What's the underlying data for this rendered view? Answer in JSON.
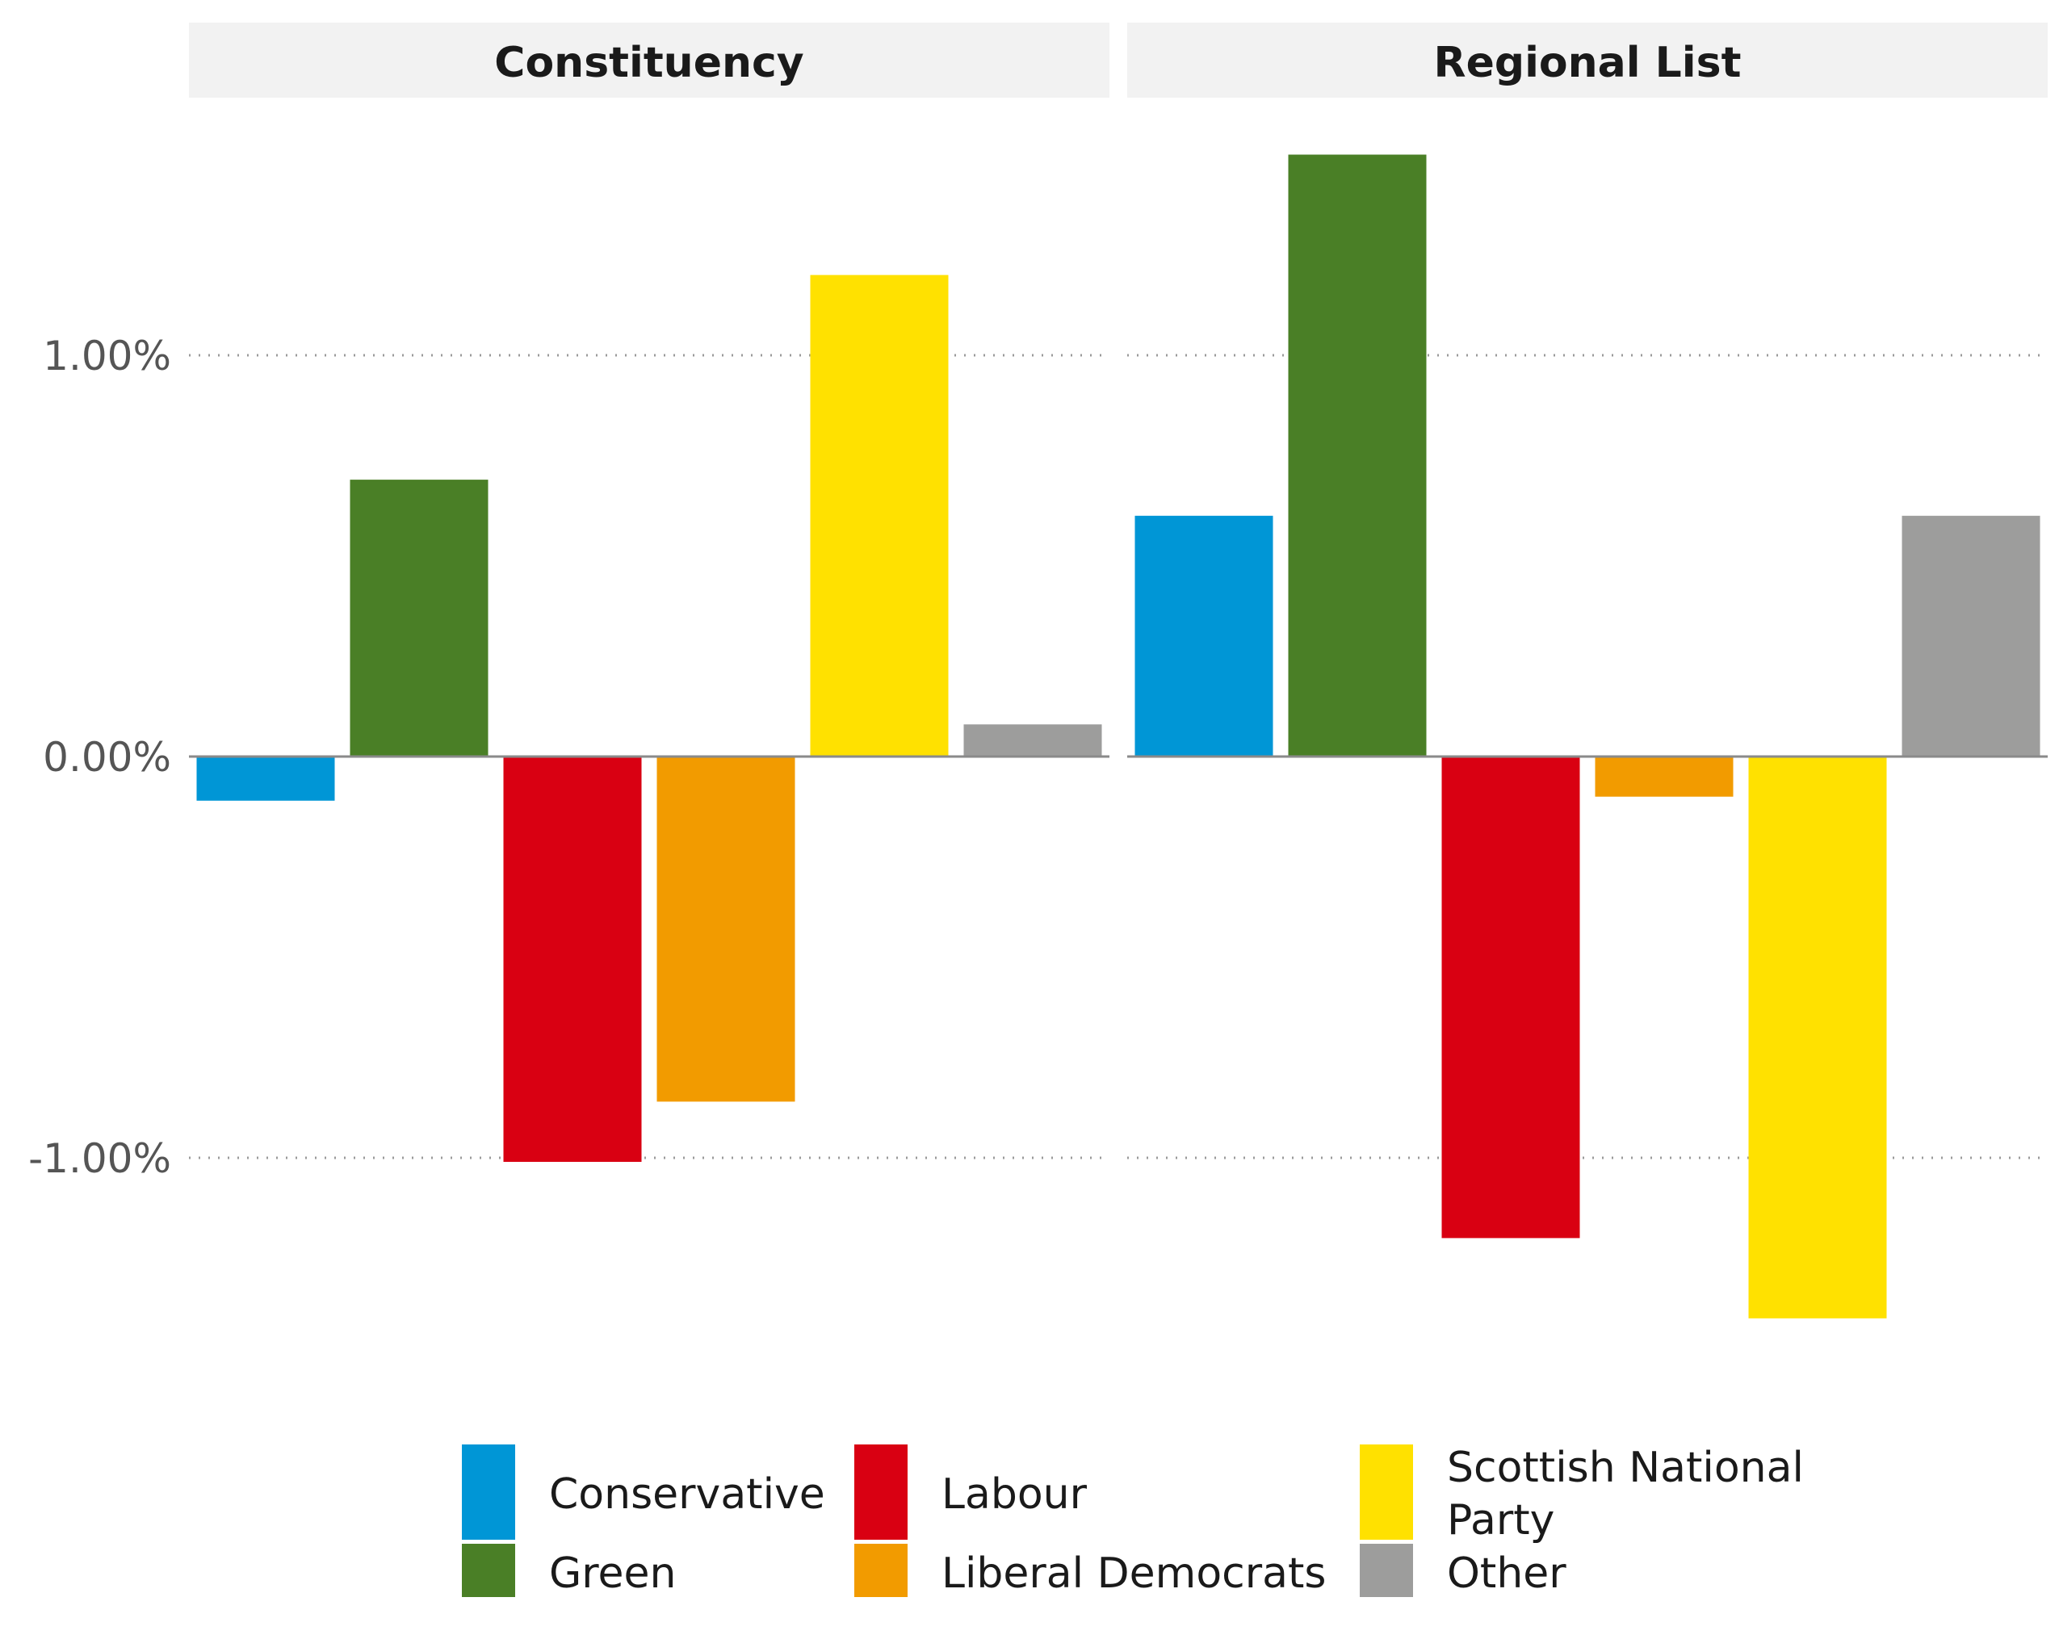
{
  "chart_data": {
    "type": "bar",
    "facets": [
      "Constituency",
      "Regional List"
    ],
    "categories": [
      "Conservative",
      "Green",
      "Labour",
      "Liberal Democrats",
      "Scottish National Party",
      "Other"
    ],
    "series": [
      {
        "name": "Constituency",
        "values": [
          -0.11,
          0.69,
          -1.01,
          -0.86,
          1.2,
          0.08
        ]
      },
      {
        "name": "Regional List",
        "values": [
          0.6,
          1.5,
          -1.2,
          -0.1,
          -1.4,
          0.6
        ]
      }
    ],
    "ylim": [
      -1.55,
      1.6
    ],
    "yticks": [
      1.0,
      0.0,
      -1.0
    ],
    "ytick_labels": [
      "1.00%",
      "0.00%",
      "-1.00%"
    ],
    "xlabel": "",
    "ylabel": "",
    "grid": "dotted horizontal",
    "legend_position": "bottom",
    "colors": {
      "Conservative": "#0096d6",
      "Green": "#4a7f26",
      "Labour": "#d90012",
      "Liberal Democrats": "#f29b00",
      "Scottish National Party": "#ffe100",
      "Other": "#9d9d9c"
    }
  },
  "legend": {
    "items": [
      {
        "label": "Conservative"
      },
      {
        "label": "Green"
      },
      {
        "label": "Labour"
      },
      {
        "label": "Liberal Democrats"
      },
      {
        "label_line1": "Scottish National",
        "label_line2": "Party"
      },
      {
        "label": "Other"
      }
    ]
  }
}
